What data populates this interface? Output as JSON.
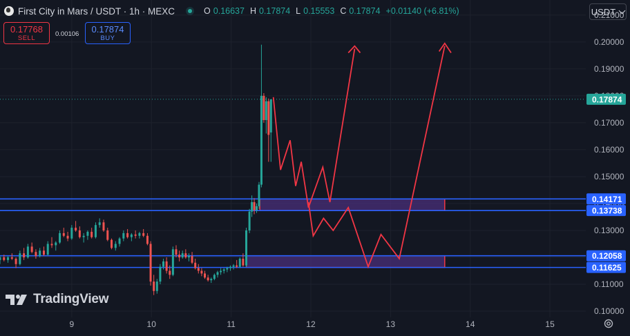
{
  "header": {
    "title": "First City in Mars / USDT · 1h · MEXC",
    "ohlc": [
      {
        "key": "O",
        "value": "0.16637"
      },
      {
        "key": "H",
        "value": "0.17874"
      },
      {
        "key": "L",
        "value": "0.15553"
      },
      {
        "key": "C",
        "value": "0.17874"
      }
    ],
    "change": "+0.01140 (+6.81%)",
    "currency": "USDT"
  },
  "trade": {
    "sell_price": "0.17768",
    "sell_label": "SELL",
    "spread": "0.00106",
    "buy_price": "0.17874",
    "buy_label": "BUY"
  },
  "brand": {
    "name": "TradingView"
  },
  "colors": {
    "up": "#26a69a",
    "down": "#ef5350",
    "level": "#2962ff",
    "drawing": "#f23645",
    "zone_fill": "#4a2f7a"
  },
  "icons": {
    "symbol": "coin-icon",
    "status": "status-dot-icon",
    "currency": "chevron-down-icon",
    "settings": "gear-icon",
    "logo": "tradingview-logo-icon"
  },
  "chart_data": {
    "type": "candlestick",
    "y_ticks": [
      "0.10000",
      "0.11000",
      "0.12000",
      "0.13000",
      "0.14000",
      "0.15000",
      "0.16000",
      "0.17000",
      "0.18000",
      "0.19000",
      "0.20000",
      "0.21000"
    ],
    "x_ticks": [
      {
        "label": "9",
        "day": 9
      },
      {
        "label": "10",
        "day": 10
      },
      {
        "label": "11",
        "day": 11
      },
      {
        "label": "12",
        "day": 12
      },
      {
        "label": "13",
        "day": 13
      },
      {
        "label": "14",
        "day": 14
      },
      {
        "label": "15",
        "day": 15
      }
    ],
    "ylim": [
      0.0977,
      0.2156
    ],
    "xlim": [
      8.1,
      15.45
    ],
    "last_price": {
      "value": 0.17874,
      "label": "0.17874"
    },
    "levels": [
      {
        "value": 0.14171,
        "label": "0.14171"
      },
      {
        "value": 0.13738,
        "label": "0.13738"
      },
      {
        "value": 0.12058,
        "label": "0.12058"
      },
      {
        "value": 0.11625,
        "label": "0.11625"
      }
    ],
    "zones": [
      {
        "x0": 11.36,
        "x1": 13.68,
        "y0": 0.13738,
        "y1": 0.14171
      },
      {
        "x0": 11.19,
        "x1": 13.68,
        "y0": 0.11625,
        "y1": 0.12058
      }
    ],
    "projection": {
      "path_a": [
        [
          11.53,
          0.1795
        ],
        [
          11.62,
          0.1525
        ],
        [
          11.74,
          0.1635
        ],
        [
          11.81,
          0.1465
        ],
        [
          11.88,
          0.1555
        ],
        [
          11.97,
          0.1385
        ],
        [
          12.15,
          0.1535
        ],
        [
          12.24,
          0.1405
        ],
        [
          12.55,
          0.1975
        ]
      ],
      "arrow_a": [
        [
          12.47,
          0.196
        ],
        [
          12.55,
          0.1985
        ],
        [
          12.62,
          0.196
        ]
      ],
      "path_b": [
        [
          11.97,
          0.1405
        ],
        [
          12.03,
          0.128
        ],
        [
          12.16,
          0.1345
        ],
        [
          12.28,
          0.13
        ],
        [
          12.47,
          0.1385
        ],
        [
          12.72,
          0.1165
        ],
        [
          12.88,
          0.1285
        ],
        [
          13.11,
          0.1195
        ],
        [
          13.68,
          0.1985
        ]
      ],
      "arrow_b": [
        [
          13.61,
          0.1965
        ],
        [
          13.68,
          0.1995
        ],
        [
          13.76,
          0.196
        ]
      ]
    },
    "candles": [
      [
        8.1,
        0.119,
        0.1205,
        0.1175,
        0.12
      ],
      [
        8.15,
        0.12,
        0.121,
        0.1185,
        0.119
      ],
      [
        8.2,
        0.119,
        0.1205,
        0.118,
        0.12
      ],
      [
        8.25,
        0.12,
        0.1215,
        0.119,
        0.1195
      ],
      [
        8.3,
        0.1195,
        0.12,
        0.116,
        0.1175
      ],
      [
        8.35,
        0.1175,
        0.1225,
        0.117,
        0.1215
      ],
      [
        8.4,
        0.1215,
        0.1235,
        0.119,
        0.12
      ],
      [
        8.45,
        0.12,
        0.125,
        0.1195,
        0.124
      ],
      [
        8.5,
        0.124,
        0.1255,
        0.1215,
        0.122
      ],
      [
        8.55,
        0.122,
        0.123,
        0.1195,
        0.1205
      ],
      [
        8.6,
        0.1205,
        0.1235,
        0.12,
        0.1225
      ],
      [
        8.65,
        0.1225,
        0.124,
        0.1205,
        0.121
      ],
      [
        8.7,
        0.121,
        0.126,
        0.1205,
        0.125
      ],
      [
        8.75,
        0.125,
        0.1275,
        0.1235,
        0.1245
      ],
      [
        8.8,
        0.1245,
        0.126,
        0.1225,
        0.1255
      ],
      [
        8.85,
        0.1255,
        0.13,
        0.125,
        0.129
      ],
      [
        8.9,
        0.129,
        0.131,
        0.1275,
        0.128
      ],
      [
        8.95,
        0.128,
        0.1295,
        0.126,
        0.127
      ],
      [
        9.0,
        0.127,
        0.132,
        0.1265,
        0.131
      ],
      [
        9.05,
        0.131,
        0.1335,
        0.1295,
        0.13
      ],
      [
        9.1,
        0.13,
        0.1315,
        0.127,
        0.1275
      ],
      [
        9.15,
        0.1275,
        0.129,
        0.1255,
        0.128
      ],
      [
        9.2,
        0.128,
        0.13,
        0.1265,
        0.1295
      ],
      [
        9.25,
        0.1295,
        0.131,
        0.127,
        0.1275
      ],
      [
        9.3,
        0.1275,
        0.133,
        0.127,
        0.132
      ],
      [
        9.35,
        0.132,
        0.1345,
        0.131,
        0.133
      ],
      [
        9.4,
        0.133,
        0.134,
        0.1295,
        0.13
      ],
      [
        9.45,
        0.13,
        0.131,
        0.126,
        0.1265
      ],
      [
        9.5,
        0.1265,
        0.127,
        0.123,
        0.1235
      ],
      [
        9.55,
        0.1235,
        0.126,
        0.1225,
        0.125
      ],
      [
        9.6,
        0.125,
        0.1275,
        0.124,
        0.127
      ],
      [
        9.65,
        0.127,
        0.13,
        0.126,
        0.129
      ],
      [
        9.7,
        0.129,
        0.1305,
        0.127,
        0.1275
      ],
      [
        9.75,
        0.1275,
        0.129,
        0.126,
        0.1285
      ],
      [
        9.8,
        0.1285,
        0.13,
        0.127,
        0.128
      ],
      [
        9.85,
        0.128,
        0.1295,
        0.127,
        0.129
      ],
      [
        9.9,
        0.129,
        0.1305,
        0.1275,
        0.128
      ],
      [
        9.95,
        0.128,
        0.129,
        0.1245,
        0.125
      ],
      [
        9.99,
        0.125,
        0.126,
        0.1095,
        0.111
      ],
      [
        10.03,
        0.111,
        0.1135,
        0.106,
        0.1075
      ],
      [
        10.07,
        0.1075,
        0.112,
        0.1065,
        0.111
      ],
      [
        10.11,
        0.111,
        0.1175,
        0.11,
        0.1165
      ],
      [
        10.15,
        0.1165,
        0.1195,
        0.1155,
        0.1185
      ],
      [
        10.19,
        0.1185,
        0.12,
        0.114,
        0.115
      ],
      [
        10.23,
        0.115,
        0.117,
        0.112,
        0.1135
      ],
      [
        10.27,
        0.1135,
        0.124,
        0.113,
        0.123
      ],
      [
        10.31,
        0.123,
        0.1245,
        0.12,
        0.121
      ],
      [
        10.35,
        0.121,
        0.1225,
        0.1185,
        0.12
      ],
      [
        10.39,
        0.12,
        0.1225,
        0.1195,
        0.1215
      ],
      [
        10.43,
        0.1215,
        0.123,
        0.1195,
        0.12
      ],
      [
        10.47,
        0.12,
        0.1215,
        0.1185,
        0.1205
      ],
      [
        10.51,
        0.1205,
        0.122,
        0.1175,
        0.118
      ],
      [
        10.55,
        0.118,
        0.1195,
        0.1155,
        0.116
      ],
      [
        10.59,
        0.116,
        0.1175,
        0.114,
        0.115
      ],
      [
        10.63,
        0.115,
        0.116,
        0.113,
        0.114
      ],
      [
        10.67,
        0.114,
        0.115,
        0.112,
        0.1125
      ],
      [
        10.71,
        0.1125,
        0.1135,
        0.111,
        0.1115
      ],
      [
        10.75,
        0.1115,
        0.1125,
        0.1105,
        0.112
      ],
      [
        10.79,
        0.112,
        0.114,
        0.1115,
        0.1135
      ],
      [
        10.83,
        0.1135,
        0.115,
        0.1125,
        0.1145
      ],
      [
        10.87,
        0.1145,
        0.116,
        0.1135,
        0.115
      ],
      [
        10.91,
        0.115,
        0.116,
        0.114,
        0.1155
      ],
      [
        10.95,
        0.1155,
        0.1165,
        0.1145,
        0.116
      ],
      [
        10.99,
        0.116,
        0.117,
        0.115,
        0.1165
      ],
      [
        11.03,
        0.1165,
        0.1175,
        0.1155,
        0.117
      ],
      [
        11.07,
        0.117,
        0.119,
        0.116,
        0.1165
      ],
      [
        11.11,
        0.1165,
        0.12,
        0.116,
        0.1195
      ],
      [
        11.15,
        0.1195,
        0.1215,
        0.1165,
        0.117
      ],
      [
        11.19,
        0.117,
        0.131,
        0.1165,
        0.13
      ],
      [
        11.23,
        0.13,
        0.138,
        0.129,
        0.137
      ],
      [
        11.26,
        0.137,
        0.143,
        0.135,
        0.1405
      ],
      [
        11.29,
        0.1405,
        0.142,
        0.136,
        0.1375
      ],
      [
        11.32,
        0.1375,
        0.14,
        0.1365,
        0.139
      ],
      [
        11.35,
        0.139,
        0.148,
        0.138,
        0.147
      ],
      [
        11.38,
        0.147,
        0.199,
        0.146,
        0.18
      ],
      [
        11.41,
        0.18,
        0.181,
        0.17,
        0.171
      ],
      [
        11.44,
        0.171,
        0.1795,
        0.166,
        0.178
      ],
      [
        11.47,
        0.178,
        0.179,
        0.1555,
        0.1655
      ],
      [
        11.5,
        0.1664,
        0.1787,
        0.1555,
        0.1787
      ]
    ]
  }
}
